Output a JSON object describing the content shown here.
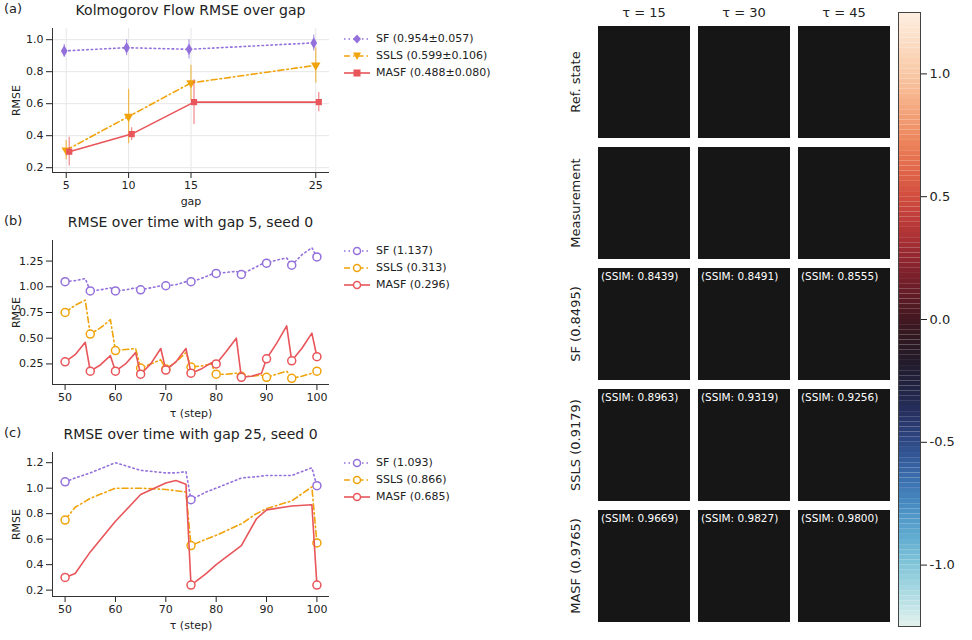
{
  "chart_data": [
    {
      "type": "line",
      "panel": "(a)",
      "title": "Kolmogorov Flow RMSE over gap",
      "x_label": "gap",
      "y_label": "RMSE",
      "x": [
        5,
        10,
        15,
        25
      ],
      "xlim": [
        3.9,
        26.1
      ],
      "xticks": [
        5,
        10,
        15,
        25
      ],
      "ylim": [
        0.17,
        1.07
      ],
      "yticks": [
        0.2,
        0.4,
        0.6,
        0.8,
        {
          "value": 1.0,
          "label": "1.0"
        }
      ],
      "grid": true,
      "legend": "right",
      "series": [
        {
          "name": "SF (0.954±0.057)",
          "color": "#9370db",
          "line_style": "dotted",
          "marker": "diamond",
          "values": [
            0.93,
            0.95,
            0.94,
            0.98
          ],
          "errors": [
            0.04,
            0.05,
            0.06,
            0.05
          ]
        },
        {
          "name": "SSLS (0.599±0.106)",
          "color": "#f0a30a",
          "line_style": "dashdot",
          "marker": "triangle_down",
          "values": [
            0.31,
            0.52,
            0.73,
            0.84
          ],
          "errors": [
            0.06,
            0.17,
            0.11,
            0.11
          ]
        },
        {
          "name": "MASF (0.488±0.080)",
          "color": "#e8555a",
          "line_style": "solid",
          "marker": "square",
          "values": [
            0.3,
            0.41,
            0.61,
            0.61
          ],
          "errors": [
            0.09,
            0.04,
            0.14,
            0.06
          ]
        }
      ]
    },
    {
      "type": "line",
      "panel": "(b)",
      "title": "RMSE over time with gap 5, seed 0",
      "x_label": "τ (step)",
      "y_label": "RMSE",
      "x": [
        50,
        52,
        54,
        55,
        57,
        59,
        60,
        62,
        64,
        65,
        67,
        69,
        70,
        72,
        74,
        75,
        77,
        79,
        80,
        82,
        84,
        85,
        87,
        89,
        90,
        92,
        94,
        95,
        97,
        99,
        100
      ],
      "observation_steps": [
        50,
        55,
        60,
        65,
        70,
        75,
        80,
        85,
        90,
        95,
        100
      ],
      "xlim": [
        47.5,
        102.5
      ],
      "xticks": [
        50,
        60,
        70,
        80,
        90,
        100
      ],
      "ylim": [
        0.05,
        1.45
      ],
      "yticks": [
        0.25,
        {
          "value": 0.5,
          "label": "0.50"
        },
        0.75,
        {
          "value": 1.0,
          "label": "1.00"
        },
        1.25
      ],
      "grid": false,
      "legend": "right",
      "series": [
        {
          "name": "SF (1.137)",
          "color": "#9370db",
          "line_style": "dotted",
          "marker": "circle_open",
          "values": [
            1.05,
            1.06,
            1.08,
            0.96,
            0.97,
            0.99,
            0.96,
            0.97,
            0.99,
            0.97,
            0.99,
            1.01,
            1.01,
            1.02,
            1.05,
            1.05,
            1.08,
            1.12,
            1.13,
            1.14,
            1.15,
            1.12,
            1.17,
            1.22,
            1.23,
            1.26,
            1.28,
            1.21,
            1.31,
            1.38,
            1.29
          ]
        },
        {
          "name": "SSLS (0.313)",
          "color": "#f0a30a",
          "line_style": "dashdot",
          "marker": "circle_open",
          "values": [
            0.75,
            0.82,
            0.87,
            0.54,
            0.6,
            0.68,
            0.38,
            0.39,
            0.4,
            0.21,
            0.25,
            0.29,
            0.2,
            0.27,
            0.36,
            0.22,
            0.23,
            0.25,
            0.15,
            0.15,
            0.16,
            0.13,
            0.13,
            0.14,
            0.12,
            0.15,
            0.18,
            0.11,
            0.13,
            0.16,
            0.18
          ]
        },
        {
          "name": "MASF (0.296)",
          "color": "#e8555a",
          "line_style": "solid",
          "marker": "circle_open",
          "values": [
            0.27,
            0.34,
            0.46,
            0.18,
            0.24,
            0.33,
            0.18,
            0.25,
            0.36,
            0.15,
            0.25,
            0.4,
            0.19,
            0.27,
            0.4,
            0.16,
            0.2,
            0.26,
            0.25,
            0.37,
            0.5,
            0.12,
            0.13,
            0.16,
            0.3,
            0.45,
            0.62,
            0.28,
            0.4,
            0.55,
            0.32
          ]
        }
      ]
    },
    {
      "type": "line",
      "panel": "(c)",
      "title": "RMSE over time with gap 25, seed 0",
      "x_label": "τ (step)",
      "y_label": "RMSE",
      "x": [
        50,
        52,
        55,
        60,
        65,
        70,
        72,
        74,
        75,
        78,
        80,
        85,
        88,
        90,
        95,
        99,
        100
      ],
      "observation_steps": [
        50,
        75,
        100
      ],
      "xlim": [
        47.5,
        102.5
      ],
      "xticks": [
        50,
        60,
        70,
        80,
        90,
        100
      ],
      "ylim": [
        0.15,
        1.28
      ],
      "yticks": [
        0.2,
        0.4,
        0.6,
        0.8,
        {
          "value": 1.0,
          "label": "1.0"
        },
        1.2
      ],
      "grid": false,
      "legend": "right",
      "series": [
        {
          "name": "SF (1.093)",
          "color": "#9370db",
          "line_style": "dotted",
          "marker": "circle_open",
          "values": [
            1.05,
            1.08,
            1.12,
            1.2,
            1.14,
            1.12,
            1.12,
            1.13,
            0.91,
            0.97,
            1.0,
            1.08,
            1.09,
            1.1,
            1.1,
            1.16,
            1.02
          ]
        },
        {
          "name": "SSLS (0.866)",
          "color": "#f0a30a",
          "line_style": "dashdot",
          "marker": "circle_open",
          "values": [
            0.75,
            0.85,
            0.92,
            1.0,
            1.0,
            0.99,
            0.98,
            0.97,
            0.55,
            0.6,
            0.63,
            0.72,
            0.8,
            0.84,
            0.9,
            1.01,
            0.57
          ]
        },
        {
          "name": "MASF (0.685)",
          "color": "#e8555a",
          "line_style": "solid",
          "marker": "circle_open",
          "values": [
            0.3,
            0.33,
            0.5,
            0.74,
            0.95,
            1.04,
            1.06,
            1.03,
            0.24,
            0.33,
            0.4,
            0.55,
            0.76,
            0.83,
            0.86,
            0.87,
            0.24
          ]
        }
      ]
    },
    {
      "type": "image_grid",
      "columns": [
        "τ = 15",
        "τ = 30",
        "τ = 45"
      ],
      "rows": [
        {
          "label": "Ref. state"
        },
        {
          "label": "Measurement"
        },
        {
          "label": "SF (0.8495)",
          "ssim": [
            "(SSIM: 0.8439)",
            "(SSIM: 0.8491)",
            "(SSIM: 0.8555)"
          ]
        },
        {
          "label": "SSLS (0.9179)",
          "ssim": [
            "(SSIM: 0.8963)",
            "(SSIM: 0.9319)",
            "(SSIM: 0.9256)"
          ]
        },
        {
          "label": "MASF (0.9765)",
          "ssim": [
            "(SSIM: 0.9669)",
            "(SSIM: 0.9827)",
            "(SSIM: 0.9800)"
          ]
        }
      ],
      "colorbar": {
        "range": [
          -1.25,
          1.25
        ],
        "ticks": [
          {
            "value": -1.0,
            "label": "-1.0"
          },
          {
            "value": -0.5,
            "label": "-0.5"
          },
          {
            "value": 0.0,
            "label": "0.0"
          },
          {
            "value": 0.5,
            "label": "0.5"
          },
          {
            "value": 1.0,
            "label": "1.0"
          }
        ]
      }
    }
  ]
}
